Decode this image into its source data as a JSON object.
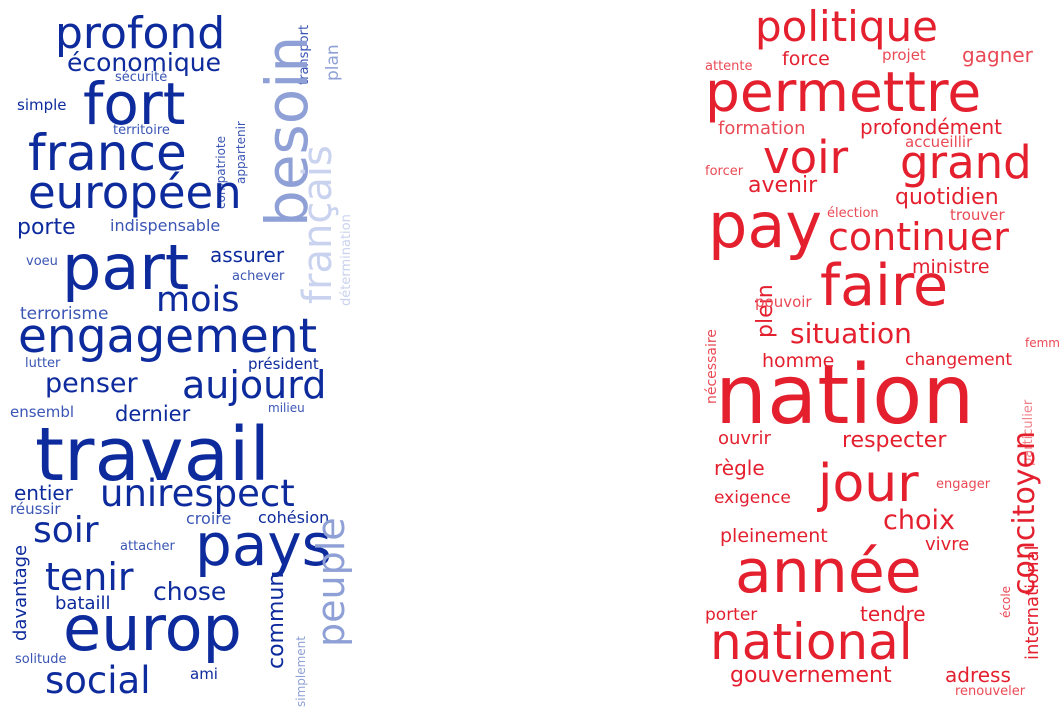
{
  "colors": {
    "left_dark": "#0d2b9c",
    "left_mid": "#3a55b4",
    "left_light": "#8fa0d6",
    "left_pale": "#c9d2ee",
    "right_dark": "#e4202f",
    "right_mid": "#ea4a55",
    "right_light": "#f08089"
  },
  "left_cloud": {
    "words": [
      "profond",
      "économique",
      "sécurité",
      "transport",
      "plan",
      "simple",
      "fort",
      "besoin",
      "territoire",
      "compatriote",
      "appartenir",
      "france",
      "français",
      "européen",
      "porte",
      "indispensable",
      "détermination",
      "voeu",
      "part",
      "assurer",
      "achever",
      "mois",
      "terrorisme",
      "engagement",
      "lutter",
      "président",
      "penser",
      "aujourd",
      "ensembl",
      "dernier",
      "milieu",
      "travail",
      "entier",
      "réussir",
      "unirespect",
      "soir",
      "croire",
      "cohésion",
      "attacher",
      "pays",
      "tenir",
      "chose",
      "davantage",
      "bataill",
      "commun",
      "peuple",
      "europ",
      "solitude",
      "social",
      "ami",
      "simplement"
    ]
  },
  "right_cloud": {
    "words": [
      "politique",
      "attente",
      "force",
      "projet",
      "gagner",
      "permettre",
      "formation",
      "profondément",
      "accueillir",
      "voir",
      "grand",
      "forcer",
      "avenir",
      "quotidien",
      "élection",
      "trouver",
      "pay",
      "continuer",
      "ministre",
      "plein",
      "faire",
      "pouvoir",
      "nécessaire",
      "situation",
      "femme",
      "homme",
      "changement",
      "nation",
      "ouvrir",
      "respecter",
      "particulier",
      "règle",
      "concitoyen",
      "jour",
      "engager",
      "exigence",
      "choix",
      "pleinement",
      "vivre",
      "année",
      "école",
      "international",
      "porter",
      "tendre",
      "national",
      "gouvernement",
      "adress",
      "renouveler"
    ]
  }
}
